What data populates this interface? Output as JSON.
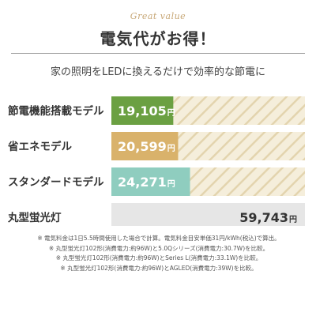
{
  "header": {
    "tagline": "Great value",
    "title": "電気代がお得！",
    "subtitle": "家の照明をLEDに換えるだけで効率的な節電に"
  },
  "colors": {
    "series": [
      "#6ba042",
      "#d9b26b",
      "#8fcdbf",
      "#e6e6e6"
    ],
    "hatch_bg": "#f5eedb",
    "hatch_line": "#e3d4ae"
  },
  "chart_data": {
    "type": "bar",
    "orientation": "horizontal",
    "categories": [
      "節電機能搭載モデル",
      "省エネモデル",
      "スタンダードモデル",
      "丸型蛍光灯"
    ],
    "values": [
      19105,
      20599,
      24271,
      59743
    ],
    "value_labels": [
      "19,105",
      "20,599",
      "24,271",
      "59,743"
    ],
    "unit": "円",
    "xlim": [
      0,
      59743
    ],
    "grid": false,
    "legend": "none"
  },
  "notes": [
    "※ 電気料金は1日5.5時間使用した場合で計算。電気料金目安単価31円/kWh(税込)で算出。",
    "※ 丸型蛍光灯102形(消費電力:約96W)と5.0Qシリーズ(消費電力:30.7W)を比較。",
    "※ 丸型蛍光灯102形(消費電力:約96W)とSeries L(消費電力:33.1W)を比較。",
    "※ 丸型蛍光灯102形(消費電力:約96W)とAGLED(消費電力:39W)を比較。"
  ]
}
